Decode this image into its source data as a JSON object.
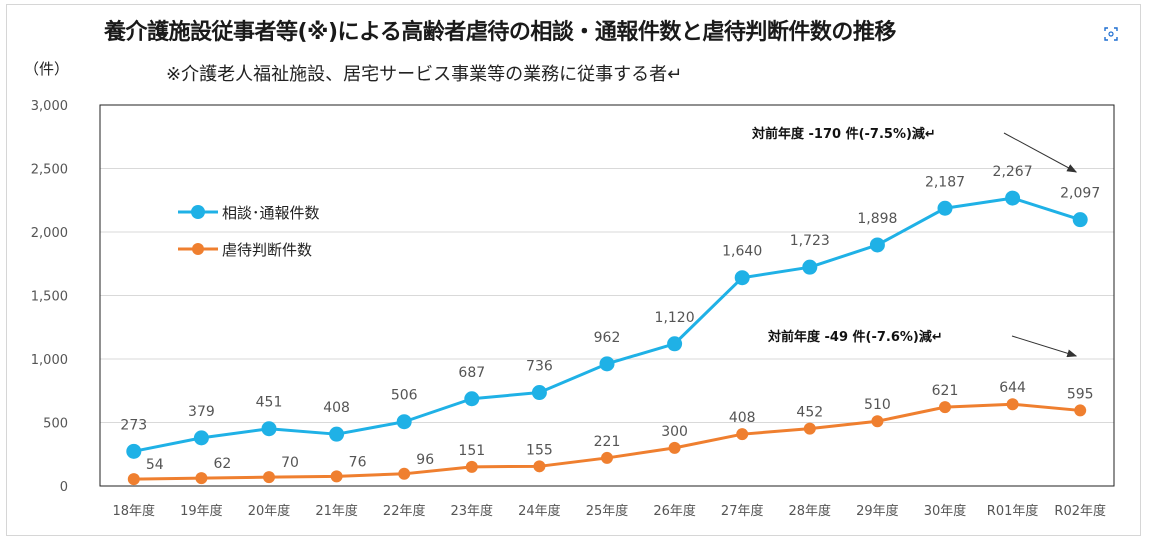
{
  "page": {
    "title": "養介護施設従事者等(※)による高齢者虐待の相談・通報件数と虐待判断件数の推移",
    "subtitle": "※介護老人福祉施設、居宅サービス事業等の業務に従事する者↵",
    "unit_label": "（件）",
    "expand_icon": "expand-icon"
  },
  "colors": {
    "series1": "#1fb1e6",
    "series2": "#ef7f2f",
    "grid": "#d9d9d9",
    "axis": "#222222"
  },
  "chart_data": {
    "type": "line",
    "title": "養介護施設従事者等(※)による高齢者虐待の相談・通報件数と虐待判断件数の推移",
    "ylabel": "（件）",
    "ylim": [
      0,
      3000
    ],
    "yticks": [
      "0",
      "500",
      "1,000",
      "1,500",
      "2,000",
      "2,500",
      "3,000"
    ],
    "ytick_values": [
      0,
      500,
      1000,
      1500,
      2000,
      2500,
      3000
    ],
    "grid": true,
    "legend_position": "upper-left",
    "categories": [
      "18年度",
      "19年度",
      "20年度",
      "21年度",
      "22年度",
      "23年度",
      "24年度",
      "25年度",
      "26年度",
      "27年度",
      "28年度",
      "29年度",
      "30年度",
      "R01年度",
      "R02年度"
    ],
    "series": [
      {
        "name": "相談･通報件数",
        "values": [
          273,
          379,
          451,
          408,
          506,
          687,
          736,
          962,
          1120,
          1640,
          1723,
          1898,
          2187,
          2267,
          2097
        ],
        "labels": [
          "273",
          "379",
          "451",
          "408",
          "506",
          "687",
          "736",
          "962",
          "1,120",
          "1,640",
          "1,723",
          "1,898",
          "2,187",
          "2,267",
          "2,097"
        ]
      },
      {
        "name": "虐待判断件数",
        "values": [
          54,
          62,
          70,
          76,
          96,
          151,
          155,
          221,
          300,
          408,
          452,
          510,
          621,
          644,
          595
        ],
        "labels": [
          "54",
          "62",
          "70",
          "76",
          "96",
          "151",
          "155",
          "221",
          "300",
          "408",
          "452",
          "510",
          "621",
          "644",
          "595"
        ]
      }
    ],
    "annotations": [
      {
        "text": "対前年度 -170 件(-7.5%)減↵",
        "target_series": 0
      },
      {
        "text": "対前年度 -49 件(-7.6%)減↵",
        "target_series": 1
      }
    ]
  }
}
